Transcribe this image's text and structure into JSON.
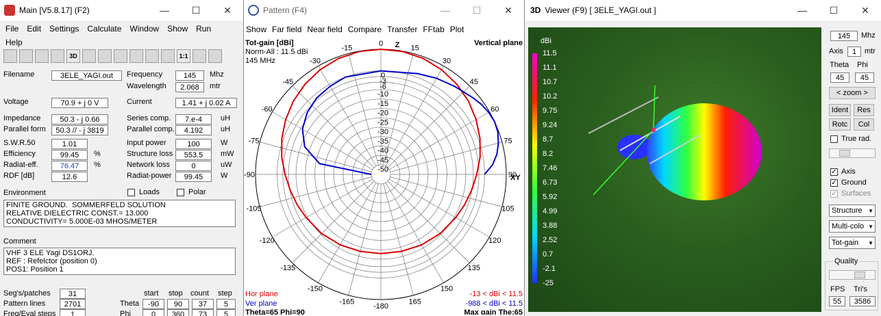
{
  "main": {
    "title": "Main [V5.8.17]  (F2)",
    "menu": [
      "File",
      "Edit",
      "Settings",
      "Calculate",
      "Window",
      "Show",
      "Run",
      "Help"
    ],
    "toolbar": [
      "open-icon",
      "copy-icon",
      "bulb-icon",
      "cube-icon",
      "3D",
      "globe-icon",
      "grid-icon",
      "target-icon",
      "chart-icon",
      "calc-icon",
      "ruler-icon",
      "1:1",
      "book-icon",
      "help-icon"
    ],
    "filename_label": "Filename",
    "filename": "3ELE_YAGI.out",
    "freq_label": "Frequency",
    "freq": "145",
    "freq_unit": "Mhz",
    "wl_label": "Wavelength",
    "wl": "2.068",
    "wl_unit": "mtr",
    "voltage_label": "Voltage",
    "voltage": "70.9 + j 0 V",
    "current_label": "Current",
    "current": "1.41 + j 0.02 A",
    "imp_label": "Impedance",
    "imp": "50.3 - j 0.66",
    "series_label": "Series comp.",
    "series": "7.e-4",
    "series_unit": "uH",
    "par_label": "Parallel form",
    "par": "50.3 // - j 3819",
    "parc_label": "Parallel comp.",
    "parc": "4.192",
    "parc_unit": "uH",
    "swr_label": "S.W.R.50",
    "swr": "1.01",
    "inp_label": "Input power",
    "inp": "100",
    "inp_unit": "W",
    "eff_label": "Efficiency",
    "eff": "99.45",
    "eff_unit": "%",
    "sl_label": "Structure loss",
    "sl": "553.5",
    "sl_unit": "mW",
    "rad_label": "Radiat-eff.",
    "rad": "76.47",
    "rad_unit": "%",
    "nl_label": "Network loss",
    "nl": "0",
    "nl_unit": "uW",
    "rdf_label": "RDF [dB]",
    "rdf": "12.6",
    "rp_label": "Radiat-power",
    "rp": "99.45",
    "rp_unit": "W",
    "env_label": "Environment",
    "loads_label": "Loads",
    "polar_label": "Polar",
    "env_text": "FINITE GROUND.  SOMMERFELD SOLUTION\nRELATIVE DIELECTRIC CONST.= 13.000\nCONDUCTIVITY= 5.000E-03 MHOS/METER",
    "comment_label": "Comment",
    "comment_text": "VHF 3 ELE Yagi DS1ORJ.\nREF : Refelctor (position 0)\nPOS1: Position 1",
    "seg_label": "Seg's/patches",
    "seg": "31",
    "pat_label": "Pattern lines",
    "pat": "2701",
    "freq_steps_label": "Freq/Eval steps",
    "freq_steps": "1",
    "hdr": [
      "start",
      "stop",
      "count",
      "step"
    ],
    "theta_label": "Theta",
    "theta": [
      "-90",
      "90",
      "37",
      "5"
    ],
    "phi_label": "Phi",
    "phi": [
      "0",
      "360",
      "73",
      "5"
    ]
  },
  "pattern": {
    "title": "Pattern   (F4)",
    "menu": [
      "Show",
      "Far field",
      "Near field",
      "Compare",
      "Transfer",
      "FFtab",
      "Plot"
    ],
    "gain_title": "Tot-gain [dBi]",
    "norm": "Norm-All : 11.5 dBi",
    "freq": "145 MHz",
    "plane": "Vertical plane",
    "z_label": "Z",
    "xy_label": "XY",
    "angles_left": [
      "-15",
      "-30",
      "-45",
      "-60",
      "-75",
      "-90",
      "-105",
      "-120",
      "-135",
      "-150",
      "-165",
      "-180"
    ],
    "angles_right": [
      "0",
      "15",
      "30",
      "45",
      "60",
      "75",
      "90",
      "105",
      "120",
      "135",
      "150",
      "165"
    ],
    "ring_labels": [
      "0",
      "-3",
      "-6",
      "-10",
      "-15",
      "-20",
      "-25",
      "-30",
      "-35",
      "-40",
      "-45",
      "-50"
    ],
    "hor": "Hor plane",
    "ver": "Ver plane",
    "hor_range": "-13 < dBi < 11.5",
    "ver_range": "-988 < dBi < 11.5",
    "footer": "Theta=65   Phi=90",
    "maxgain": "Max gain The:65",
    "hor_color": "#dd0000",
    "ver_color": "#0000cc",
    "red_pattern": [
      [
        0,
        11.5
      ],
      [
        10,
        11.3
      ],
      [
        20,
        10.6
      ],
      [
        30,
        9.3
      ],
      [
        40,
        7.6
      ],
      [
        50,
        5.6
      ],
      [
        60,
        3.3
      ],
      [
        70,
        0.9
      ],
      [
        80,
        -1.6
      ],
      [
        90,
        -4.2
      ],
      [
        100,
        -6.2
      ],
      [
        110,
        -7.8
      ],
      [
        120,
        -9.2
      ],
      [
        135,
        -10.6
      ],
      [
        150,
        -11.8
      ],
      [
        165,
        -12.7
      ],
      [
        180,
        -13
      ]
    ],
    "blue_pattern": [
      [
        -90,
        -988
      ],
      [
        -80,
        -22
      ],
      [
        -70,
        -12
      ],
      [
        -60,
        -7
      ],
      [
        -50,
        -4
      ],
      [
        -40,
        -2
      ],
      [
        -30,
        -1
      ],
      [
        -20,
        0
      ],
      [
        0,
        0
      ],
      [
        20,
        2
      ],
      [
        30,
        4
      ],
      [
        40,
        6
      ],
      [
        50,
        8.5
      ],
      [
        55,
        10
      ],
      [
        60,
        11
      ],
      [
        65,
        11.5
      ],
      [
        70,
        11
      ],
      [
        75,
        9.5
      ],
      [
        80,
        7.5
      ],
      [
        85,
        4.5
      ],
      [
        90,
        0
      ]
    ]
  },
  "viewer": {
    "title": "Viewer (F9)    [  3ELE_YAGI.out ]",
    "scale_unit": "dBi",
    "scale": [
      "11.5",
      "11.1",
      "10.7",
      "10.2",
      "9.75",
      "9.24",
      "8.7",
      "8.2",
      "7.46",
      "6.73",
      "5.92",
      "4.99",
      "3.88",
      "2.52",
      "0.7",
      "-2.1",
      "-25"
    ],
    "freq": "145",
    "freq_unit": "Mhz",
    "axis_label": "Axis",
    "axis": "1",
    "axis_unit": "mtr",
    "theta_label": "Theta",
    "phi_label": "Phi",
    "theta": "45",
    "phi": "45",
    "zoom": "zoom",
    "ident": "Ident",
    "res": "Res",
    "rotc": "Rotc",
    "col": "Col",
    "truerad": "True rad.",
    "axis_chk": "Axis",
    "ground_chk": "Ground",
    "surf_chk": "Surfaces",
    "sel1": "Structure",
    "sel2": "Multi-colo",
    "sel3": "Tot-gain",
    "quality": "Quality",
    "fps_label": "FPS",
    "tris_label": "Tri's",
    "fps": "55",
    "tris": "3586"
  }
}
